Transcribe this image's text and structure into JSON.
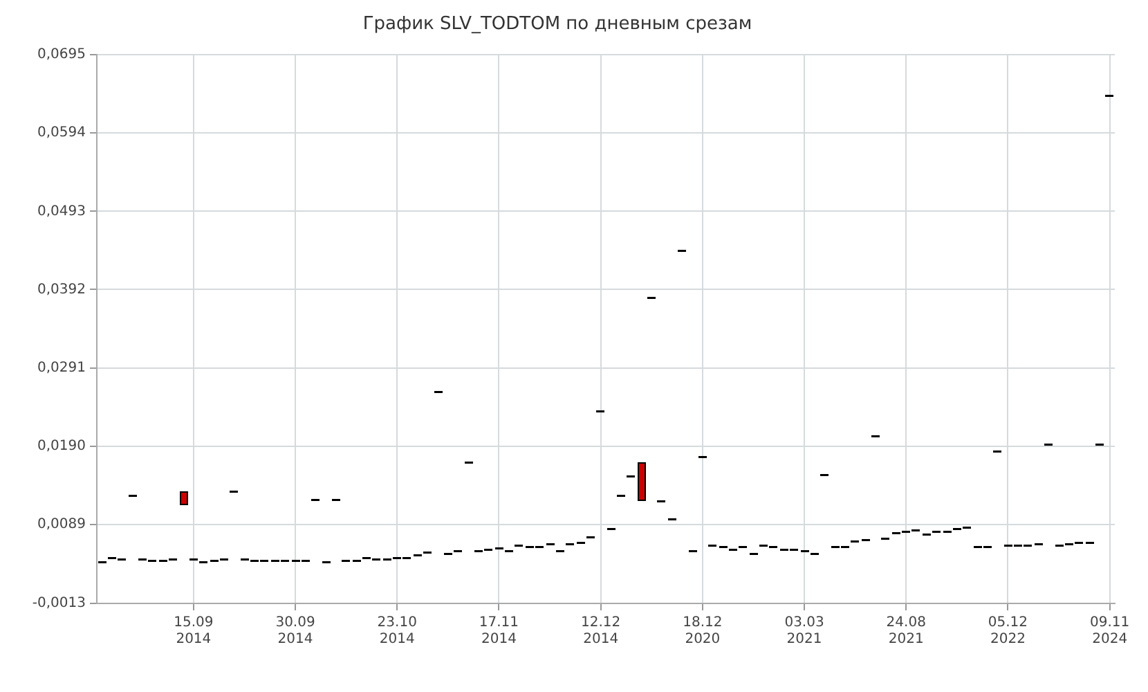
{
  "chart_data": {
    "type": "candlestick",
    "title": "График SLV_TODTOM по дневным срезам",
    "categories": [
      null,
      null,
      null,
      null,
      null,
      null,
      null,
      null,
      null,
      "15.09 2014",
      null,
      null,
      null,
      null,
      null,
      null,
      null,
      null,
      null,
      "30.09 2014",
      null,
      null,
      null,
      null,
      null,
      null,
      null,
      null,
      null,
      "23.10 2014",
      null,
      null,
      null,
      null,
      null,
      null,
      null,
      null,
      null,
      "17.11 2014",
      null,
      null,
      null,
      null,
      null,
      null,
      null,
      null,
      null,
      "12.12 2014",
      null,
      null,
      null,
      null,
      null,
      null,
      null,
      null,
      null,
      "18.12 2020",
      null,
      null,
      null,
      null,
      null,
      null,
      null,
      null,
      null,
      "03.03 2021",
      null,
      null,
      null,
      null,
      null,
      null,
      null,
      null,
      null,
      "24.08 2021",
      null,
      null,
      null,
      null,
      null,
      null,
      null,
      null,
      null,
      "05.12 2022",
      null,
      null,
      null,
      null,
      null,
      null,
      null,
      null,
      null,
      "09.11 2024"
    ],
    "ohlc": [
      [
        0.0041,
        0.0041,
        0.0041,
        0.0041
      ],
      [
        0.0046,
        0.0046,
        0.0046,
        0.0046
      ],
      [
        0.0045,
        0.0045,
        0.0045,
        0.0045
      ],
      [
        0.0126,
        0.0126,
        0.0126,
        0.0126
      ],
      [
        0.0045,
        0.0045,
        0.0045,
        0.0045
      ],
      [
        0.0042,
        0.0042,
        0.0042,
        0.0042
      ],
      [
        0.0043,
        0.0043,
        0.0043,
        0.0043
      ],
      [
        0.0045,
        0.0045,
        0.0045,
        0.0045
      ],
      [
        0.0132,
        0.0132,
        0.0114,
        0.0114
      ],
      [
        0.0045,
        0.0045,
        0.0045,
        0.0045
      ],
      [
        0.004,
        0.004,
        0.004,
        0.004
      ],
      [
        0.0043,
        0.0043,
        0.0043,
        0.0043
      ],
      [
        0.0045,
        0.0045,
        0.0045,
        0.0045
      ],
      [
        0.0132,
        0.0132,
        0.0132,
        0.0132
      ],
      [
        0.0045,
        0.0045,
        0.0045,
        0.0045
      ],
      [
        0.0042,
        0.0042,
        0.0042,
        0.0042
      ],
      [
        0.0042,
        0.0042,
        0.0042,
        0.0042
      ],
      [
        0.0042,
        0.0042,
        0.0042,
        0.0042
      ],
      [
        0.0043,
        0.0043,
        0.0043,
        0.0043
      ],
      [
        0.0043,
        0.0043,
        0.0043,
        0.0043
      ],
      [
        0.0042,
        0.0042,
        0.0042,
        0.0042
      ],
      [
        0.0121,
        0.0121,
        0.0121,
        0.0121
      ],
      [
        0.004,
        0.004,
        0.004,
        0.004
      ],
      [
        0.0121,
        0.0121,
        0.0121,
        0.0121
      ],
      [
        0.0042,
        0.0042,
        0.0042,
        0.0042
      ],
      [
        0.0042,
        0.0042,
        0.0042,
        0.0042
      ],
      [
        0.0046,
        0.0046,
        0.0046,
        0.0046
      ],
      [
        0.0045,
        0.0045,
        0.0045,
        0.0045
      ],
      [
        0.0045,
        0.0045,
        0.0045,
        0.0045
      ],
      [
        0.0046,
        0.0046,
        0.0046,
        0.0046
      ],
      [
        0.0046,
        0.0046,
        0.0046,
        0.0046
      ],
      [
        0.005,
        0.005,
        0.005,
        0.005
      ],
      [
        0.0053,
        0.0053,
        0.0053,
        0.0053
      ],
      [
        0.0261,
        0.0261,
        0.0261,
        0.0261
      ],
      [
        0.0051,
        0.0051,
        0.0051,
        0.0051
      ],
      [
        0.0055,
        0.0055,
        0.0055,
        0.0055
      ],
      [
        0.0169,
        0.0169,
        0.0169,
        0.0169
      ],
      [
        0.0055,
        0.0055,
        0.0055,
        0.0055
      ],
      [
        0.0057,
        0.0057,
        0.0057,
        0.0057
      ],
      [
        0.0059,
        0.0059,
        0.0059,
        0.0059
      ],
      [
        0.0055,
        0.0055,
        0.0055,
        0.0055
      ],
      [
        0.0062,
        0.0062,
        0.0062,
        0.0062
      ],
      [
        0.006,
        0.006,
        0.006,
        0.006
      ],
      [
        0.006,
        0.006,
        0.006,
        0.006
      ],
      [
        0.0064,
        0.0064,
        0.0064,
        0.0064
      ],
      [
        0.0055,
        0.0055,
        0.0055,
        0.0055
      ],
      [
        0.0064,
        0.0064,
        0.0064,
        0.0064
      ],
      [
        0.0065,
        0.0065,
        0.0065,
        0.0065
      ],
      [
        0.0073,
        0.0073,
        0.0073,
        0.0073
      ],
      [
        0.0236,
        0.0236,
        0.0236,
        0.0236
      ],
      [
        0.0083,
        0.0083,
        0.0083,
        0.0083
      ],
      [
        0.0126,
        0.0126,
        0.0126,
        0.0126
      ],
      [
        0.0151,
        0.0151,
        0.0151,
        0.0151
      ],
      [
        0.017,
        0.017,
        0.012,
        0.012
      ],
      [
        0.0382,
        0.0382,
        0.0382,
        0.0382
      ],
      [
        0.012,
        0.012,
        0.012,
        0.012
      ],
      [
        0.0096,
        0.0096,
        0.0096,
        0.0096
      ],
      [
        0.0442,
        0.0442,
        0.0442,
        0.0442
      ],
      [
        0.0055,
        0.0055,
        0.0055,
        0.0055
      ],
      [
        0.0176,
        0.0176,
        0.0176,
        0.0176
      ],
      [
        0.0062,
        0.0062,
        0.0062,
        0.0062
      ],
      [
        0.006,
        0.006,
        0.006,
        0.006
      ],
      [
        0.0057,
        0.0057,
        0.0057,
        0.0057
      ],
      [
        0.006,
        0.006,
        0.006,
        0.006
      ],
      [
        0.0051,
        0.0051,
        0.0051,
        0.0051
      ],
      [
        0.0062,
        0.0062,
        0.0062,
        0.0062
      ],
      [
        0.006,
        0.006,
        0.006,
        0.006
      ],
      [
        0.0057,
        0.0057,
        0.0057,
        0.0057
      ],
      [
        0.0057,
        0.0057,
        0.0057,
        0.0057
      ],
      [
        0.0055,
        0.0055,
        0.0055,
        0.0055
      ],
      [
        0.0051,
        0.0051,
        0.0051,
        0.0051
      ],
      [
        0.0153,
        0.0153,
        0.0153,
        0.0153
      ],
      [
        0.006,
        0.006,
        0.006,
        0.006
      ],
      [
        0.006,
        0.006,
        0.006,
        0.006
      ],
      [
        0.0067,
        0.0067,
        0.0067,
        0.0067
      ],
      [
        0.0069,
        0.0069,
        0.0069,
        0.0069
      ],
      [
        0.0203,
        0.0203,
        0.0203,
        0.0203
      ],
      [
        0.0071,
        0.0071,
        0.0071,
        0.0071
      ],
      [
        0.0078,
        0.0078,
        0.0078,
        0.0078
      ],
      [
        0.008,
        0.008,
        0.008,
        0.008
      ],
      [
        0.0082,
        0.0082,
        0.0082,
        0.0082
      ],
      [
        0.0076,
        0.0076,
        0.0076,
        0.0076
      ],
      [
        0.008,
        0.008,
        0.008,
        0.008
      ],
      [
        0.008,
        0.008,
        0.008,
        0.008
      ],
      [
        0.0083,
        0.0083,
        0.0083,
        0.0083
      ],
      [
        0.0085,
        0.0085,
        0.0085,
        0.0085
      ],
      [
        0.006,
        0.006,
        0.006,
        0.006
      ],
      [
        0.006,
        0.006,
        0.006,
        0.006
      ],
      [
        0.0184,
        0.0184,
        0.0184,
        0.0184
      ],
      [
        0.0062,
        0.0062,
        0.0062,
        0.0062
      ],
      [
        0.0062,
        0.0062,
        0.0062,
        0.0062
      ],
      [
        0.0062,
        0.0062,
        0.0062,
        0.0062
      ],
      [
        0.0064,
        0.0064,
        0.0064,
        0.0064
      ],
      [
        0.0192,
        0.0192,
        0.0192,
        0.0192
      ],
      [
        0.0062,
        0.0062,
        0.0062,
        0.0062
      ],
      [
        0.0064,
        0.0064,
        0.0064,
        0.0064
      ],
      [
        0.0065,
        0.0065,
        0.0065,
        0.0065
      ],
      [
        0.0065,
        0.0065,
        0.0065,
        0.0065
      ],
      [
        0.0193,
        0.0193,
        0.0193,
        0.0193
      ],
      [
        0.0642,
        0.0642,
        0.0642,
        0.0642
      ]
    ],
    "colors": [
      "#000000",
      "#000000",
      "#000000",
      "#000000",
      "#000000",
      "#000000",
      "#000000",
      "#000000",
      "#cc0000",
      "#000000",
      "#000000",
      "#000000",
      "#000000",
      "#000000",
      "#000000",
      "#000000",
      "#000000",
      "#000000",
      "#000000",
      "#000000",
      "#000000",
      "#000000",
      "#000000",
      "#000000",
      "#000000",
      "#000000",
      "#000000",
      "#000000",
      "#000000",
      "#000000",
      "#000000",
      "#000000",
      "#000000",
      "#000000",
      "#000000",
      "#000000",
      "#000000",
      "#000000",
      "#000000",
      "#000000",
      "#000000",
      "#000000",
      "#000000",
      "#000000",
      "#000000",
      "#000000",
      "#000000",
      "#000000",
      "#000000",
      "#000000",
      "#000000",
      "#000000",
      "#000000",
      "#cc0000",
      "#000000",
      "#000000",
      "#000000",
      "#000000",
      "#000000",
      "#000000",
      "#000000",
      "#000000",
      "#000000",
      "#000000",
      "#000000",
      "#000000",
      "#000000",
      "#000000",
      "#000000",
      "#000000",
      "#000000",
      "#000000",
      "#000000",
      "#000000",
      "#000000",
      "#000000",
      "#000000",
      "#000000",
      "#000000",
      "#000000",
      "#000000",
      "#000000",
      "#000000",
      "#000000",
      "#000000",
      "#000000",
      "#000000",
      "#000000",
      "#000000",
      "#000000",
      "#000000",
      "#000000",
      "#000000",
      "#000000",
      "#000000",
      "#000000",
      "#000000",
      "#000000",
      "#000000",
      "#000000"
    ],
    "ylim": [
      -0.0013,
      0.0695
    ],
    "yticks": [
      {
        "value": -0.0013,
        "label": "-0,0013"
      },
      {
        "value": 0.0089,
        "label": "0,0089"
      },
      {
        "value": 0.019,
        "label": "0,0190"
      },
      {
        "value": 0.0291,
        "label": "0,0291"
      },
      {
        "value": 0.0392,
        "label": "0,0392"
      },
      {
        "value": 0.0493,
        "label": "0,0493"
      },
      {
        "value": 0.0594,
        "label": "0,0594"
      },
      {
        "value": 0.0695,
        "label": "0,0695"
      }
    ],
    "grid": true,
    "legend": false
  }
}
